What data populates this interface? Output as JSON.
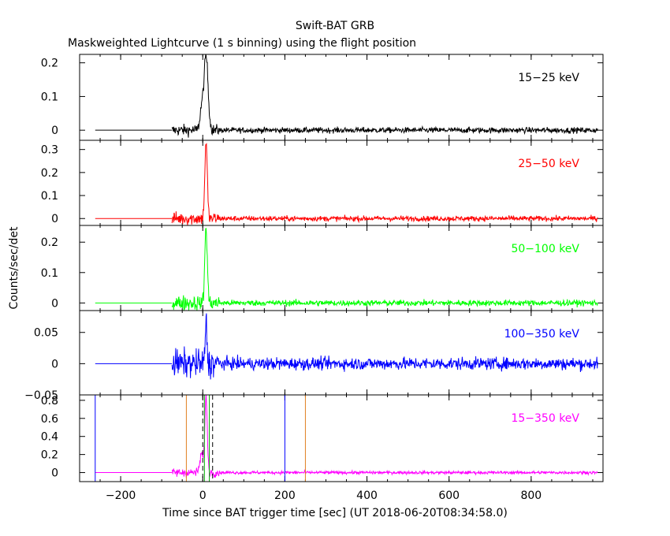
{
  "header": {
    "title": "Swift-BAT GRB",
    "subtitle": "Maskweighted Lightcurve (1 s binning) using the flight position"
  },
  "axes": {
    "xlabel": "Time since BAT trigger time [sec] (UT 2018-06-20T08:34:58.0)",
    "ylabel": "Counts/sec/det",
    "xlim": [
      -300,
      975
    ],
    "x_ticks": [
      -200,
      0,
      200,
      400,
      600,
      800
    ],
    "x_tick_labels": [
      "−200",
      "0",
      "200",
      "400",
      "600",
      "800"
    ]
  },
  "chart_data": [
    {
      "type": "line",
      "band": "15−25 keV",
      "color": "#000000",
      "ylim": [
        -0.03,
        0.225
      ],
      "y_ticks": [
        0,
        0.1,
        0.2
      ],
      "y_tick_labels": [
        "0",
        "0.1",
        "0.2"
      ],
      "series": {
        "start": -75,
        "pre_level": 0,
        "noise": 0.006,
        "pre_noise": 0.012,
        "peaks": [
          {
            "t": 8,
            "amp": 0.22,
            "w": 5
          },
          {
            "t": -3,
            "amp": 0.06,
            "w": 4
          }
        ]
      }
    },
    {
      "type": "line",
      "band": "25−50 keV",
      "color": "#ff0000",
      "ylim": [
        -0.03,
        0.34
      ],
      "y_ticks": [
        0,
        0.1,
        0.2,
        0.3
      ],
      "y_tick_labels": [
        "0",
        "0.1",
        "0.2",
        "0.3"
      ],
      "series": {
        "start": -75,
        "pre_level": 0,
        "noise": 0.008,
        "pre_noise": 0.02,
        "peaks": [
          {
            "t": 8,
            "amp": 0.33,
            "w": 3
          }
        ]
      }
    },
    {
      "type": "line",
      "band": "50−100 keV",
      "color": "#00ff00",
      "ylim": [
        -0.025,
        0.255
      ],
      "y_ticks": [
        0,
        0.1,
        0.2
      ],
      "y_tick_labels": [
        "0",
        "0.1",
        "0.2"
      ],
      "series": {
        "start": -75,
        "pre_level": 0,
        "noise": 0.007,
        "pre_noise": 0.018,
        "peaks": [
          {
            "t": 8,
            "amp": 0.25,
            "w": 3
          }
        ]
      }
    },
    {
      "type": "line",
      "band": "100−350 keV",
      "color": "#0000ff",
      "ylim": [
        -0.05,
        0.085
      ],
      "y_ticks": [
        -0.05,
        0,
        0.05
      ],
      "y_tick_labels": [
        "−0.05",
        "0",
        "0.05"
      ],
      "series": {
        "start": -75,
        "pre_level": 0,
        "noise": 0.007,
        "pre_noise": 0.016,
        "peaks": [
          {
            "t": 8,
            "amp": 0.072,
            "w": 2
          }
        ]
      }
    },
    {
      "type": "line",
      "band": "15−350 keV",
      "color": "#ff00ff",
      "ylim": [
        -0.1,
        0.86
      ],
      "y_ticks": [
        0,
        0.2,
        0.4,
        0.6,
        0.8
      ],
      "y_tick_labels": [
        "0",
        "0.2",
        "0.4",
        "0.6",
        "0.8"
      ],
      "series": {
        "start": -75,
        "pre_level": 0,
        "noise": 0.012,
        "pre_noise": 0.035,
        "peaks": [
          {
            "t": 8,
            "amp": 0.83,
            "w": 3
          },
          {
            "t": -3,
            "amp": 0.2,
            "w": 4
          }
        ]
      },
      "markers": [
        {
          "x": -262,
          "color": "#0000ff",
          "style": "solid"
        },
        {
          "x": 200,
          "color": "#0000ff",
          "style": "solid"
        },
        {
          "x": -40,
          "color": "#e08020",
          "style": "solid"
        },
        {
          "x": 250,
          "color": "#e08020",
          "style": "solid"
        },
        {
          "x": 0,
          "color": "#000000",
          "style": "dashed"
        },
        {
          "x": 24,
          "color": "#000000",
          "style": "dashed"
        },
        {
          "x": 4,
          "color": "#00aa00",
          "style": "solid"
        },
        {
          "x": 16,
          "color": "#00aa00",
          "style": "solid"
        }
      ]
    }
  ]
}
